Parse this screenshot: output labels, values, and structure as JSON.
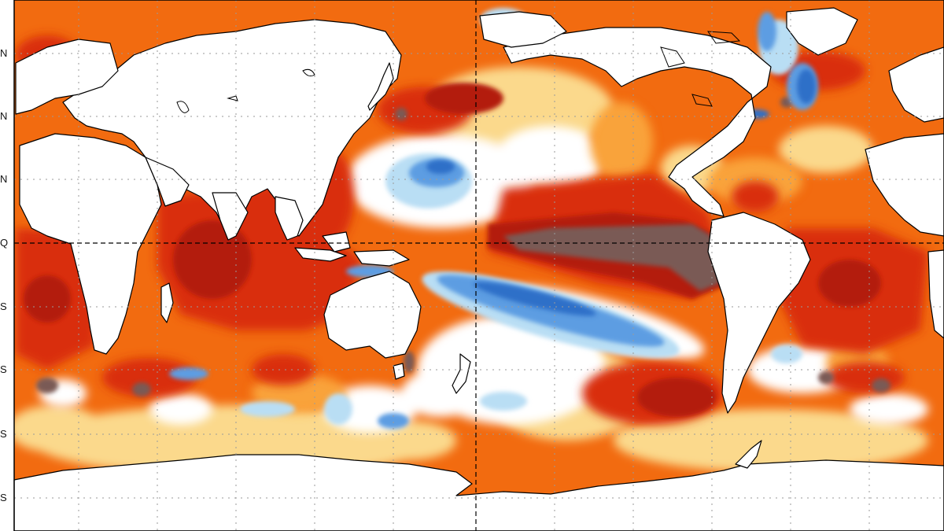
{
  "map": {
    "projection": "equirectangular",
    "center_longitude": 180,
    "variable": "sea-surface-temperature-anomaly",
    "colors": {
      "land": "#ffffff",
      "coastline": "#000000",
      "grid": "#9a9a9a",
      "equator": "#000000",
      "cold_strong": "#2f6fc8",
      "cold_medium": "#5d9de2",
      "cold_light": "#b9def4",
      "neutral": "#ffffff",
      "warm_light": "#fbd98c",
      "warm_medium": "#f9a33a",
      "warm": "#f26b10",
      "warm_strong": "#d92d08",
      "warm_very_strong": "#b31b0a",
      "warm_extreme": "#7a5a55"
    },
    "lat_labels": [
      {
        "text": "N"
      },
      {
        "text": "N"
      },
      {
        "text": "N"
      },
      {
        "text": "Q"
      },
      {
        "text": "S"
      },
      {
        "text": "S"
      },
      {
        "text": "S"
      },
      {
        "text": "S"
      }
    ],
    "legend": "none",
    "grid": true
  }
}
